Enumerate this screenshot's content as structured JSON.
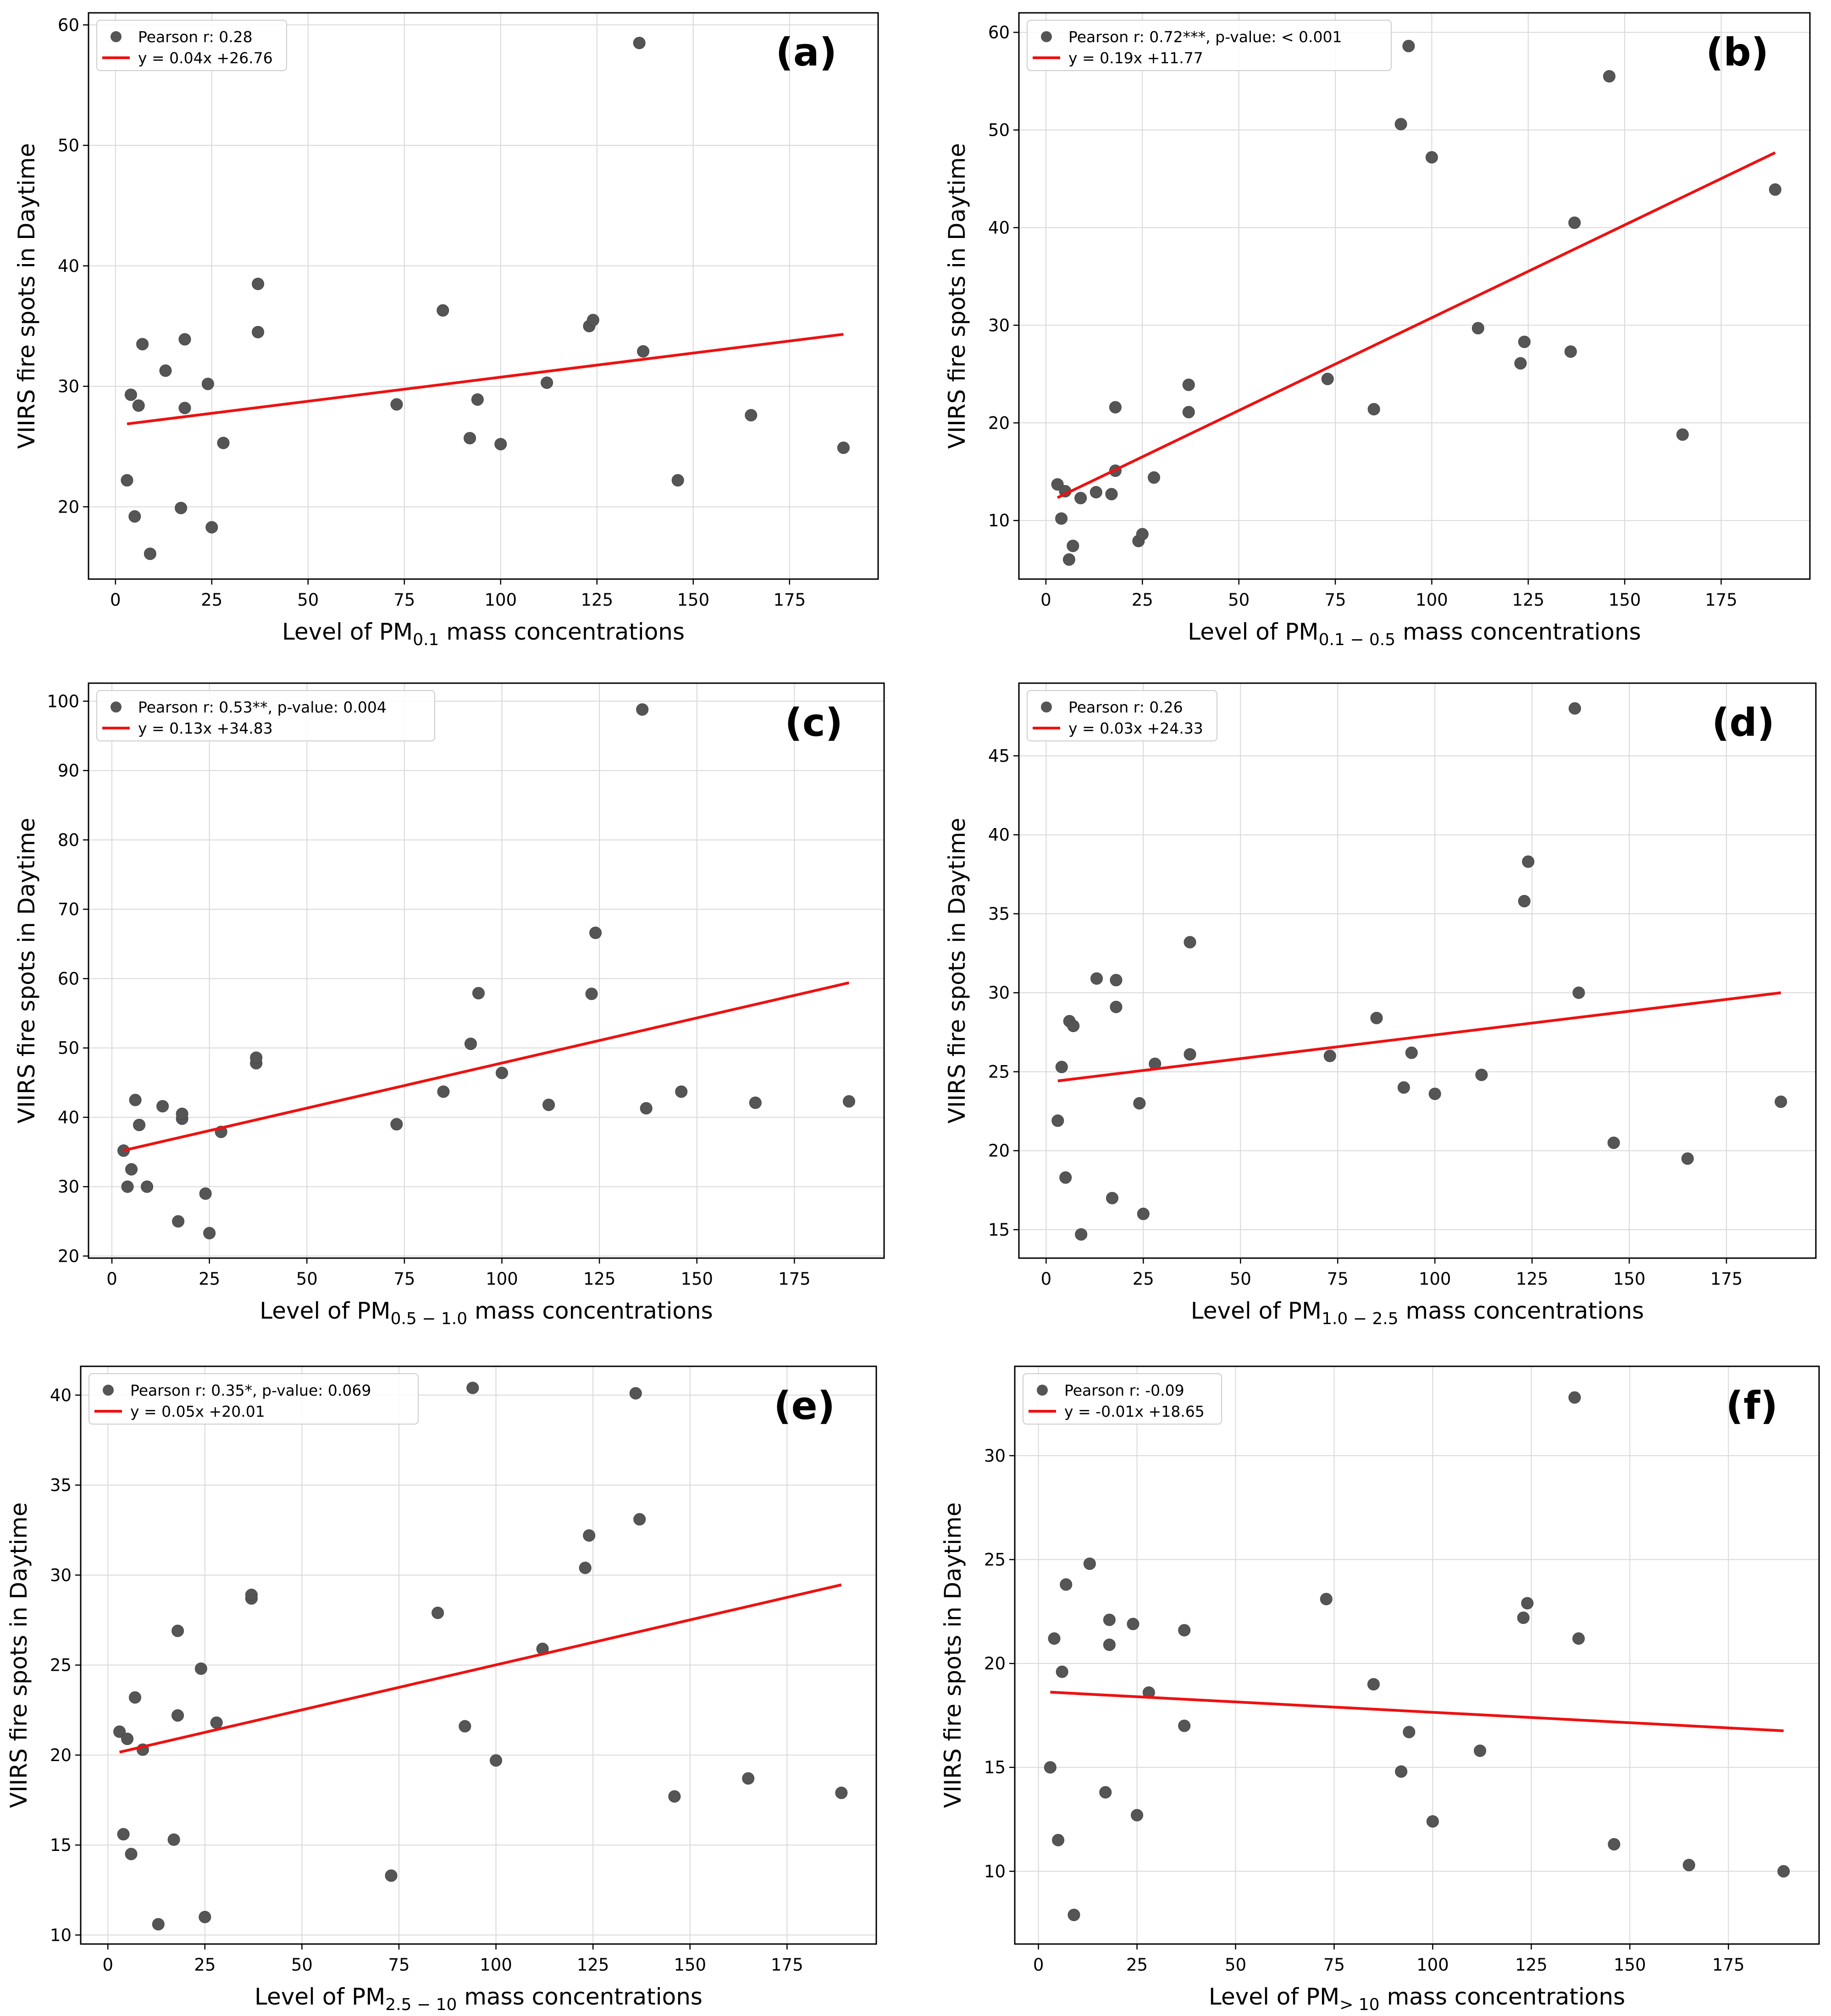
{
  "chart_data": [
    {
      "type": "scatter",
      "panel_label": "(a)",
      "xlabel": {
        "prefix": "Level of PM",
        "sub": "0.1",
        "suffix": " mass concentrations"
      },
      "ylabel": "VIIRS fire spots in Daytime",
      "xlim": [
        -7,
        198
      ],
      "ylim": [
        14,
        61
      ],
      "xticks": [
        0,
        25,
        50,
        75,
        100,
        125,
        150,
        175
      ],
      "yticks": [
        20,
        30,
        40,
        50,
        60
      ],
      "grid": true,
      "legend_position": "top-left",
      "legend": {
        "scatter": "Pearson r: 0.28",
        "line": "y = 0.04x +26.76"
      },
      "fit": {
        "slope": 0.04,
        "intercept": 26.76,
        "x_range": [
          3,
          189
        ]
      },
      "points": [
        [
          3,
          22.2
        ],
        [
          4,
          29.3
        ],
        [
          5,
          19.2
        ],
        [
          6,
          28.4
        ],
        [
          7,
          33.5
        ],
        [
          9,
          16.1
        ],
        [
          13,
          31.3
        ],
        [
          17,
          19.9
        ],
        [
          18,
          28.2
        ],
        [
          18,
          33.9
        ],
        [
          24,
          30.2
        ],
        [
          25,
          18.3
        ],
        [
          28,
          25.3
        ],
        [
          37,
          34.5
        ],
        [
          37,
          38.5
        ],
        [
          73,
          28.5
        ],
        [
          85,
          36.3
        ],
        [
          92,
          25.7
        ],
        [
          94,
          28.9
        ],
        [
          100,
          25.2
        ],
        [
          112,
          30.3
        ],
        [
          123,
          35
        ],
        [
          124,
          35.5
        ],
        [
          136,
          58.5
        ],
        [
          137,
          32.9
        ],
        [
          146,
          22.2
        ],
        [
          165,
          27.6
        ],
        [
          189,
          24.9
        ]
      ]
    },
    {
      "type": "scatter",
      "panel_label": "(b)",
      "xlabel": {
        "prefix": "Level of PM",
        "sub": "0.1 − 0.5",
        "suffix": " mass concentrations"
      },
      "ylabel": "VIIRS fire spots in Daytime",
      "xlim": [
        -7,
        198
      ],
      "ylim": [
        4,
        62
      ],
      "xticks": [
        0,
        25,
        50,
        75,
        100,
        125,
        150,
        175
      ],
      "yticks": [
        10,
        20,
        30,
        40,
        50,
        60
      ],
      "grid": true,
      "legend_position": "top-left",
      "legend": {
        "scatter": "Pearson r: 0.72***, p-value: < 0.001",
        "line": "y = 0.19x +11.77"
      },
      "fit": {
        "slope": 0.19,
        "intercept": 11.77,
        "x_range": [
          3,
          189
        ]
      },
      "points": [
        [
          3,
          13.7
        ],
        [
          4,
          10.2
        ],
        [
          5,
          13
        ],
        [
          6,
          6
        ],
        [
          7,
          7.4
        ],
        [
          9,
          12.3
        ],
        [
          13,
          12.9
        ],
        [
          17,
          12.7
        ],
        [
          18,
          15.1
        ],
        [
          18,
          21.6
        ],
        [
          24,
          7.9
        ],
        [
          25,
          8.6
        ],
        [
          28,
          14.4
        ],
        [
          37,
          21.1
        ],
        [
          37,
          23.9
        ],
        [
          73,
          24.5
        ],
        [
          85,
          21.4
        ],
        [
          92,
          50.6
        ],
        [
          94,
          58.6
        ],
        [
          100,
          47.2
        ],
        [
          112,
          29.7
        ],
        [
          123,
          26.1
        ],
        [
          124,
          28.3
        ],
        [
          136,
          27.3
        ],
        [
          137,
          40.5
        ],
        [
          146,
          55.5
        ],
        [
          165,
          18.8
        ],
        [
          189,
          43.9
        ]
      ]
    },
    {
      "type": "scatter",
      "panel_label": "(c)",
      "xlabel": {
        "prefix": "Level of PM",
        "sub": "0.5 − 1.0",
        "suffix": " mass concentrations"
      },
      "ylabel": "VIIRS fire spots in Daytime",
      "xlim": [
        -6,
        198
      ],
      "ylim": [
        19.7,
        102.6
      ],
      "xticks": [
        0,
        25,
        50,
        75,
        100,
        125,
        150,
        175
      ],
      "yticks": [
        20,
        30,
        40,
        50,
        60,
        70,
        80,
        90,
        100
      ],
      "grid": true,
      "legend_position": "top-left",
      "legend": {
        "scatter": "Pearson r: 0.53**, p-value: 0.004",
        "line": "y = 0.13x +34.83"
      },
      "fit": {
        "slope": 0.13,
        "intercept": 34.83,
        "x_range": [
          3,
          189
        ]
      },
      "points": [
        [
          3,
          35.2
        ],
        [
          4,
          30
        ],
        [
          5,
          32.5
        ],
        [
          6,
          42.5
        ],
        [
          7,
          38.9
        ],
        [
          9,
          30
        ],
        [
          13,
          41.6
        ],
        [
          17,
          25
        ],
        [
          18,
          39.8
        ],
        [
          18,
          40.5
        ],
        [
          24,
          29
        ],
        [
          25,
          23.3
        ],
        [
          28,
          37.9
        ],
        [
          37,
          47.8
        ],
        [
          37,
          48.6
        ],
        [
          73,
          39
        ],
        [
          85,
          43.7
        ],
        [
          92,
          50.6
        ],
        [
          94,
          57.9
        ],
        [
          100,
          46.4
        ],
        [
          112,
          41.8
        ],
        [
          123,
          57.8
        ],
        [
          124,
          66.6
        ],
        [
          136,
          98.8
        ],
        [
          137,
          41.3
        ],
        [
          146,
          43.7
        ],
        [
          165,
          42.1
        ],
        [
          189,
          42.3
        ]
      ]
    },
    {
      "type": "scatter",
      "panel_label": "(d)",
      "xlabel": {
        "prefix": "Level of PM",
        "sub": "1.0 − 2.5",
        "suffix": " mass concentrations"
      },
      "ylabel": "VIIRS fire spots in Daytime",
      "xlim": [
        -7,
        198
      ],
      "ylim": [
        13.2,
        49.6
      ],
      "xticks": [
        0,
        25,
        50,
        75,
        100,
        125,
        150,
        175
      ],
      "yticks": [
        15,
        20,
        25,
        30,
        35,
        40,
        45
      ],
      "grid": true,
      "legend_position": "top-left",
      "legend": {
        "scatter": "Pearson r: 0.26",
        "line": "y = 0.03x +24.33"
      },
      "fit": {
        "slope": 0.03,
        "intercept": 24.33,
        "x_range": [
          3,
          189
        ]
      },
      "points": [
        [
          3,
          21.9
        ],
        [
          4,
          25.3
        ],
        [
          5,
          18.3
        ],
        [
          6,
          28.2
        ],
        [
          7,
          27.9
        ],
        [
          9,
          14.7
        ],
        [
          13,
          30.9
        ],
        [
          17,
          17
        ],
        [
          18,
          29.1
        ],
        [
          18,
          30.8
        ],
        [
          24,
          23
        ],
        [
          25,
          16
        ],
        [
          28,
          25.5
        ],
        [
          37,
          26.1
        ],
        [
          37,
          33.2
        ],
        [
          73,
          26
        ],
        [
          85,
          28.4
        ],
        [
          92,
          24
        ],
        [
          94,
          26.2
        ],
        [
          100,
          23.6
        ],
        [
          112,
          24.8
        ],
        [
          123,
          35.8
        ],
        [
          124,
          38.3
        ],
        [
          136,
          48
        ],
        [
          137,
          30
        ],
        [
          146,
          20.5
        ],
        [
          165,
          19.5
        ],
        [
          189,
          23.1
        ]
      ]
    },
    {
      "type": "scatter",
      "panel_label": "(e)",
      "xlabel": {
        "prefix": "Level of PM",
        "sub": "2.5 − 10",
        "suffix": " mass concentrations"
      },
      "ylabel": "VIIRS fire spots in Daytime",
      "xlim": [
        -7,
        198
      ],
      "ylim": [
        9.5,
        41.6
      ],
      "xticks": [
        0,
        25,
        50,
        75,
        100,
        125,
        150,
        175
      ],
      "yticks": [
        10,
        15,
        20,
        25,
        30,
        35,
        40
      ],
      "grid": true,
      "legend_position": "top-left",
      "legend": {
        "scatter": "Pearson r: 0.35*, p-value: 0.069",
        "line": "y = 0.05x +20.01"
      },
      "fit": {
        "slope": 0.05,
        "intercept": 20.01,
        "x_range": [
          3,
          189
        ]
      },
      "points": [
        [
          3,
          21.3
        ],
        [
          4,
          15.6
        ],
        [
          5,
          20.9
        ],
        [
          6,
          14.5
        ],
        [
          7,
          23.2
        ],
        [
          9,
          20.3
        ],
        [
          13,
          10.6
        ],
        [
          17,
          15.3
        ],
        [
          18,
          22.2
        ],
        [
          18,
          26.9
        ],
        [
          24,
          24.8
        ],
        [
          25,
          11
        ],
        [
          28,
          21.8
        ],
        [
          37,
          28.7
        ],
        [
          37,
          28.9
        ],
        [
          73,
          13.3
        ],
        [
          85,
          27.9
        ],
        [
          92,
          21.6
        ],
        [
          94,
          40.4
        ],
        [
          100,
          19.7
        ],
        [
          112,
          25.9
        ],
        [
          123,
          30.4
        ],
        [
          124,
          32.2
        ],
        [
          136,
          40.1
        ],
        [
          137,
          33.1
        ],
        [
          146,
          17.7
        ],
        [
          165,
          18.7
        ],
        [
          189,
          17.9
        ]
      ]
    },
    {
      "type": "scatter",
      "panel_label": "(f)",
      "xlabel": {
        "prefix": "Level of PM",
        "sub": "> 10",
        "suffix": " mass concentrations"
      },
      "ylabel": "VIIRS fire spots in Daytime",
      "xlim": [
        -6,
        198
      ],
      "ylim": [
        6.5,
        34.3
      ],
      "xticks": [
        0,
        25,
        50,
        75,
        100,
        125,
        150,
        175
      ],
      "yticks": [
        10,
        15,
        20,
        25,
        30
      ],
      "grid": true,
      "legend_position": "top-left",
      "legend": {
        "scatter": "Pearson r: -0.09",
        "line": "y = -0.01x +18.65"
      },
      "fit": {
        "slope": -0.01,
        "intercept": 18.65,
        "x_range": [
          3,
          189
        ]
      },
      "points": [
        [
          3,
          15
        ],
        [
          4,
          21.2
        ],
        [
          5,
          11.5
        ],
        [
          6,
          19.6
        ],
        [
          7,
          23.8
        ],
        [
          9,
          7.9
        ],
        [
          13,
          24.8
        ],
        [
          17,
          13.8
        ],
        [
          18,
          20.9
        ],
        [
          18,
          22.1
        ],
        [
          24,
          21.9
        ],
        [
          25,
          12.7
        ],
        [
          28,
          18.6
        ],
        [
          37,
          17
        ],
        [
          37,
          21.6
        ],
        [
          73,
          23.1
        ],
        [
          85,
          19
        ],
        [
          92,
          14.8
        ],
        [
          94,
          16.7
        ],
        [
          100,
          12.4
        ],
        [
          112,
          15.8
        ],
        [
          123,
          22.2
        ],
        [
          124,
          22.9
        ],
        [
          136,
          32.8
        ],
        [
          137,
          21.2
        ],
        [
          146,
          11.3
        ],
        [
          165,
          10.3
        ],
        [
          189,
          10
        ]
      ]
    }
  ]
}
